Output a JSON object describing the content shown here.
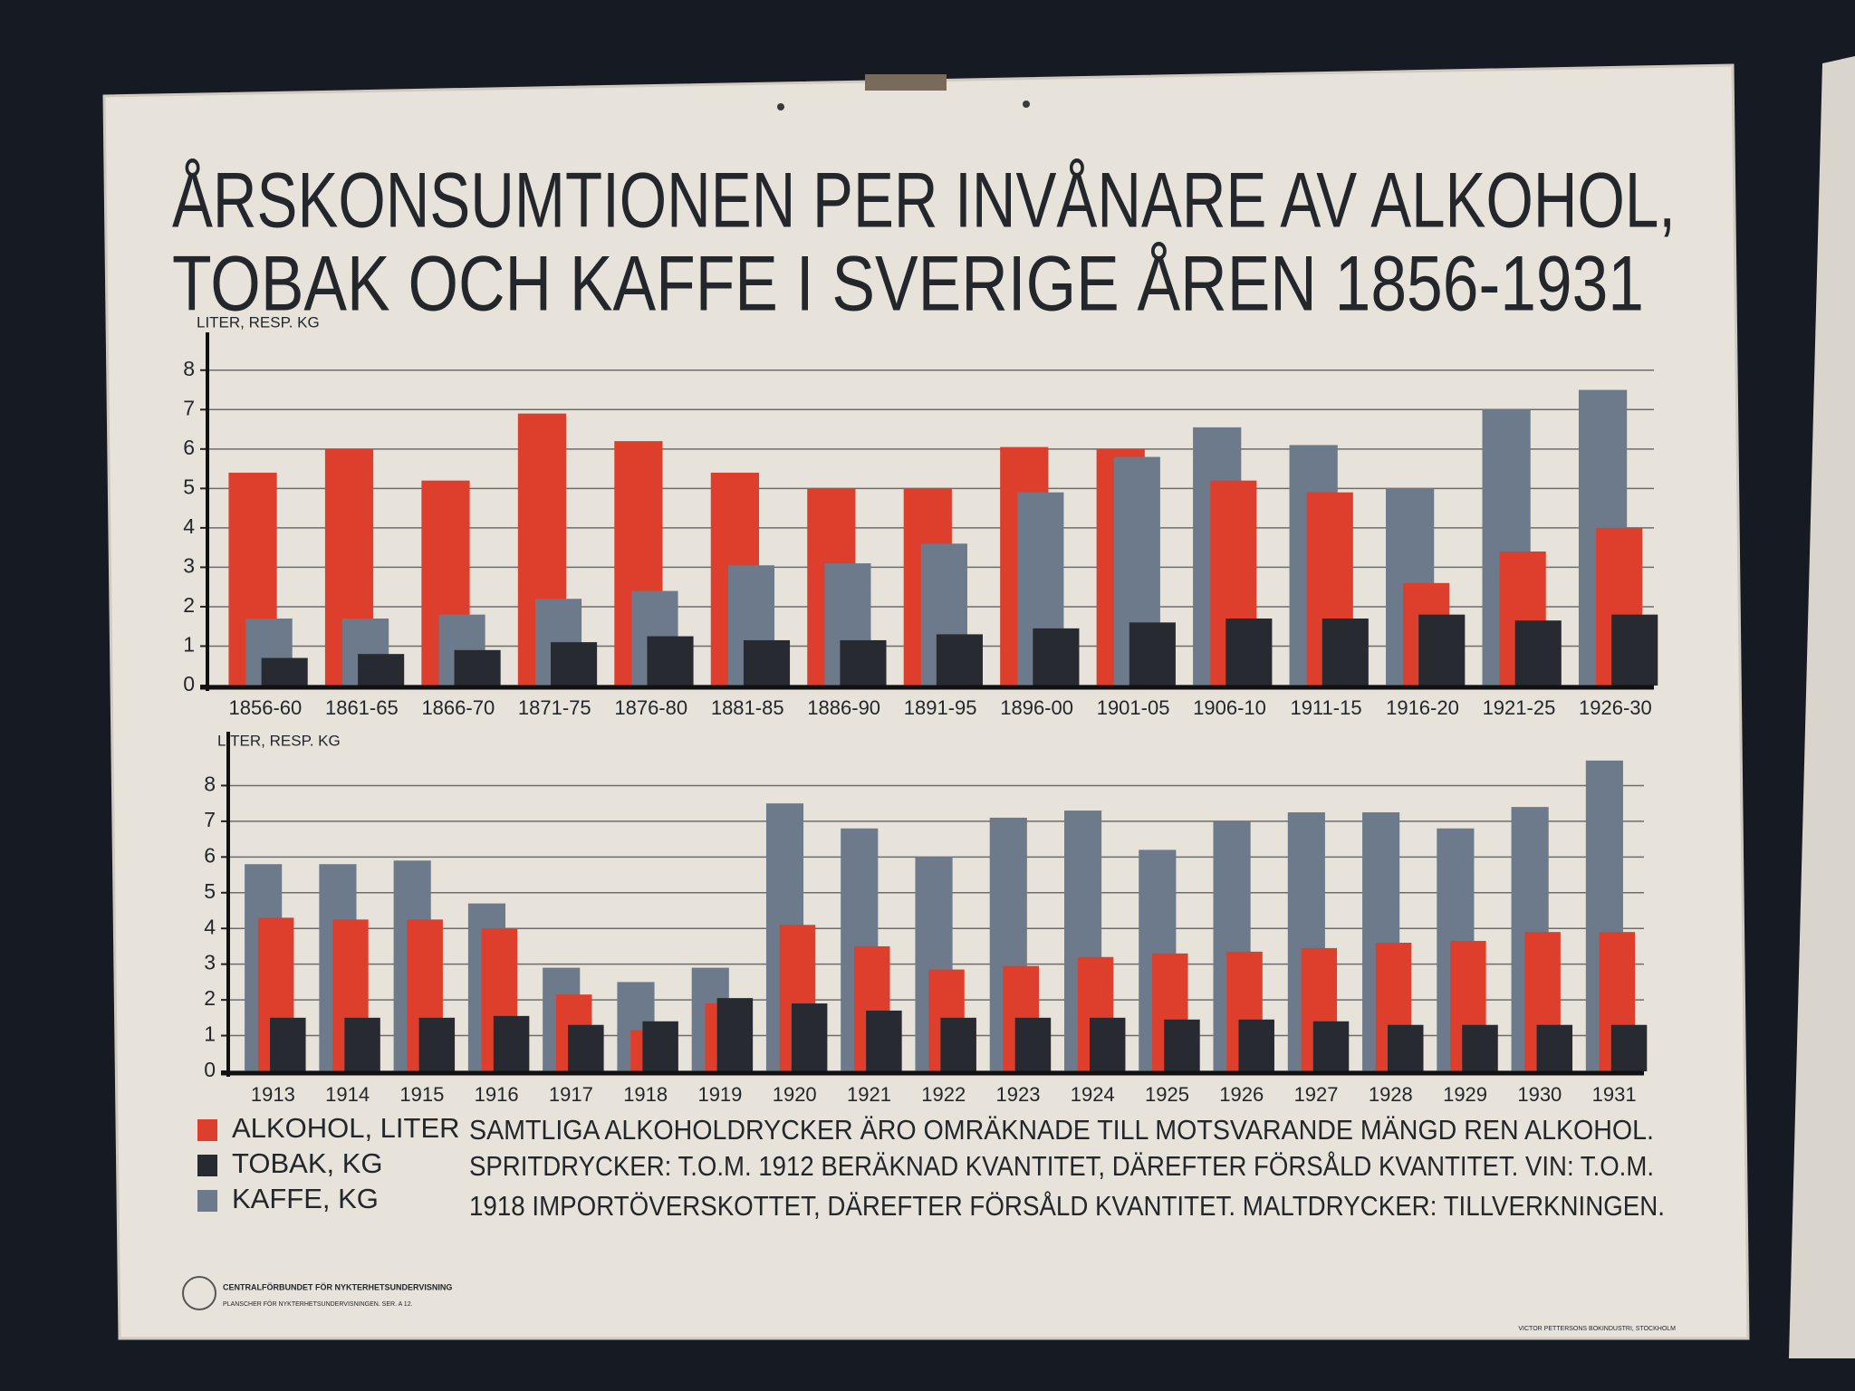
{
  "title": [
    "ÅRSKONSUMTIONEN PER INVÅNARE AV ALKOHOL,",
    "TOBAK OCH KAFFE I SVERIGE ÅREN 1856-1931"
  ],
  "chart_data": [
    {
      "type": "bar",
      "ylabel": "LITER, RESP. KG",
      "categories": [
        "1856-60",
        "1861-65",
        "1866-70",
        "1871-75",
        "1876-80",
        "1881-85",
        "1886-90",
        "1891-95",
        "1896-00",
        "1901-05",
        "1906-10",
        "1911-15",
        "1916-20",
        "1921-25",
        "1926-30"
      ],
      "series": [
        {
          "color": "#de3f2c",
          "values": [
            5.4,
            6.0,
            5.2,
            6.9,
            6.2,
            5.4,
            5.0,
            5.0,
            6.05,
            6.0,
            5.2,
            4.9,
            2.6,
            3.4,
            4.0
          ]
        },
        {
          "color": "#272b31",
          "values": [
            0.7,
            0.8,
            0.9,
            1.1,
            1.25,
            1.15,
            1.15,
            1.3,
            1.45,
            1.6,
            1.7,
            1.7,
            1.8,
            1.65,
            1.8
          ]
        },
        {
          "color": "#6c7a8b",
          "values": [
            1.7,
            1.7,
            1.8,
            2.2,
            2.4,
            3.05,
            3.1,
            3.6,
            4.9,
            5.8,
            6.55,
            6.1,
            5.0,
            7.0,
            7.5
          ]
        }
      ],
      "ylim": [
        0,
        8.5
      ],
      "yticks": [
        0,
        1,
        2,
        3,
        4,
        5,
        6,
        7,
        8
      ],
      "grid": true
    },
    {
      "type": "bar",
      "ylabel": "LITER, RESP. KG",
      "categories": [
        "1913",
        "1914",
        "1915",
        "1916",
        "1917",
        "1918",
        "1919",
        "1920",
        "1921",
        "1922",
        "1923",
        "1924",
        "1925",
        "1926",
        "1927",
        "1928",
        "1929",
        "1930",
        "1931"
      ],
      "series": [
        {
          "name": "ALKOHOL, LITER",
          "color": "#de3f2c",
          "values": [
            4.3,
            4.25,
            4.25,
            4.0,
            2.15,
            1.15,
            1.9,
            4.1,
            3.5,
            2.85,
            2.95,
            3.2,
            3.3,
            3.35,
            3.45,
            3.6,
            3.65,
            3.9,
            3.9
          ]
        },
        {
          "name": "TOBAK, KG",
          "color": "#272b31",
          "values": [
            1.5,
            1.5,
            1.5,
            1.55,
            1.3,
            1.4,
            2.05,
            1.9,
            1.7,
            1.5,
            1.5,
            1.5,
            1.45,
            1.45,
            1.4,
            1.3,
            1.3,
            1.3,
            1.3
          ]
        },
        {
          "name": "KAFFE, KG",
          "color": "#6c7a8b",
          "values": [
            5.8,
            5.8,
            5.9,
            4.7,
            2.9,
            2.5,
            2.9,
            7.5,
            6.8,
            6.0,
            7.1,
            7.3,
            6.2,
            7.0,
            7.25,
            7.25,
            6.8,
            7.4,
            8.7
          ]
        }
      ],
      "ylim": [
        0,
        9
      ],
      "yticks": [
        0,
        1,
        2,
        3,
        4,
        5,
        6,
        7,
        8
      ],
      "grid": true
    }
  ],
  "notes": [
    "SAMTLIGA ALKOHOLDRYCKER ÄRO OMRÄKNADE TILL MOTSVARANDE MÄNGD REN ALKOHOL.",
    "SPRITDRYCKER: T.O.M. 1912 BERÄKNAD KVANTITET, DÄREFTER FÖRSÅLD KVANTITET. VIN: T.O.M.",
    "1918 IMPORTÖVERSKOTTET, DÄREFTER FÖRSÅLD KVANTITET. MALTDRYCKER: TILLVERKNINGEN."
  ],
  "footer": {
    "publisher": "CENTRALFÖRBUNDET FÖR NYKTERHETSUNDERVISNING",
    "series": "PLANSCHER FÖR NYKTERHETSUNDERVISNINGEN. SER. A 12.",
    "printer": "VICTOR PETTERSONS BOKINDUSTRI, STOCKHOLM"
  }
}
